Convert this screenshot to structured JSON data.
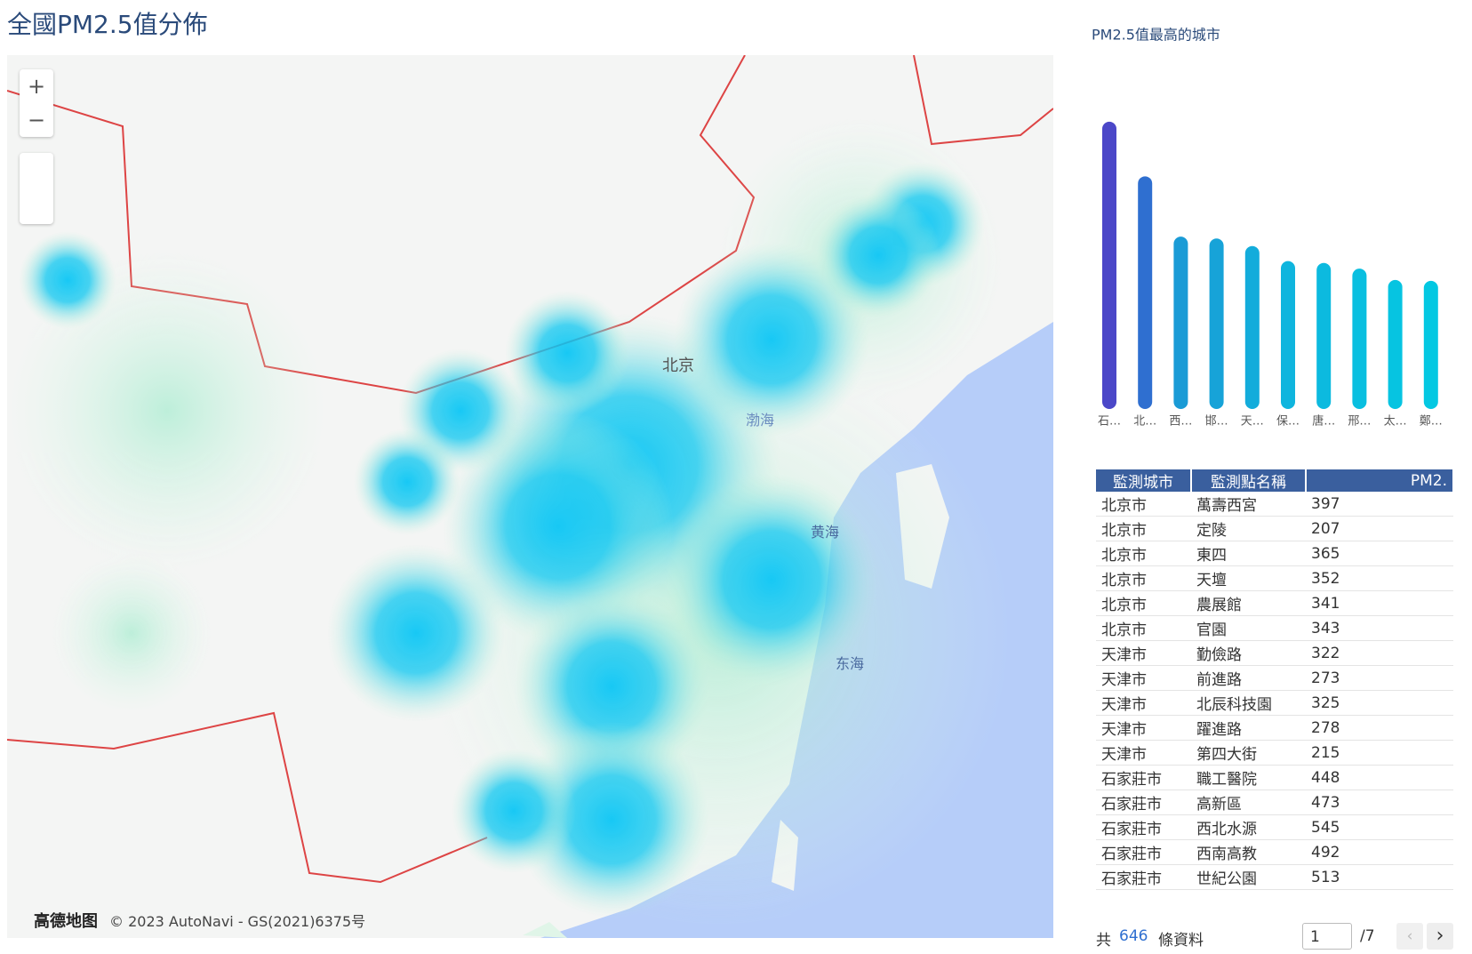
{
  "header": {
    "title": "全國PM2.5值分佈"
  },
  "map": {
    "labels": [
      "北京",
      "渤海",
      "黄海",
      "东海"
    ],
    "zoom_in": "+",
    "zoom_out": "−",
    "logo": "高德地图",
    "attribution": "© 2023 AutoNavi - GS(2021)6375号"
  },
  "chart_data": {
    "type": "bar",
    "title": "PM2.5值最高的城市",
    "categories": [
      "石…",
      "北…",
      "西…",
      "邯…",
      "天…",
      "保…",
      "唐…",
      "邢…",
      "太…",
      "鄭…"
    ],
    "values": [
      305,
      247,
      183,
      181,
      173,
      157,
      155,
      149,
      137,
      136
    ],
    "colors": [
      "#4b47c8",
      "#2f6fd0",
      "#1a9bd6",
      "#17a3d8",
      "#13acdb",
      "#0fb5de",
      "#0cbadf",
      "#09bfe0",
      "#06c4e1",
      "#03c8e2"
    ],
    "ylim": [
      0,
      320
    ]
  },
  "table": {
    "columns": [
      "監測城市",
      "監測點名稱",
      "PM2."
    ],
    "rows": [
      [
        "北京市",
        "萬壽西宮",
        397
      ],
      [
        "北京市",
        "定陵",
        207
      ],
      [
        "北京市",
        "東四",
        365
      ],
      [
        "北京市",
        "天壇",
        352
      ],
      [
        "北京市",
        "農展館",
        341
      ],
      [
        "北京市",
        "官園",
        343
      ],
      [
        "天津市",
        "勤儉路",
        322
      ],
      [
        "天津市",
        "前進路",
        273
      ],
      [
        "天津市",
        "北辰科技園",
        325
      ],
      [
        "天津市",
        "躍進路",
        278
      ],
      [
        "天津市",
        "第四大街",
        215
      ],
      [
        "石家莊市",
        "職工醫院",
        448
      ],
      [
        "石家莊市",
        "高新區",
        473
      ],
      [
        "石家莊市",
        "西北水源",
        545
      ],
      [
        "石家莊市",
        "西南高教",
        492
      ],
      [
        "石家莊市",
        "世紀公園",
        513
      ]
    ]
  },
  "footer": {
    "prefix": "共",
    "total": 646,
    "suffix": "條資料",
    "page": "1",
    "pages": "/7"
  }
}
